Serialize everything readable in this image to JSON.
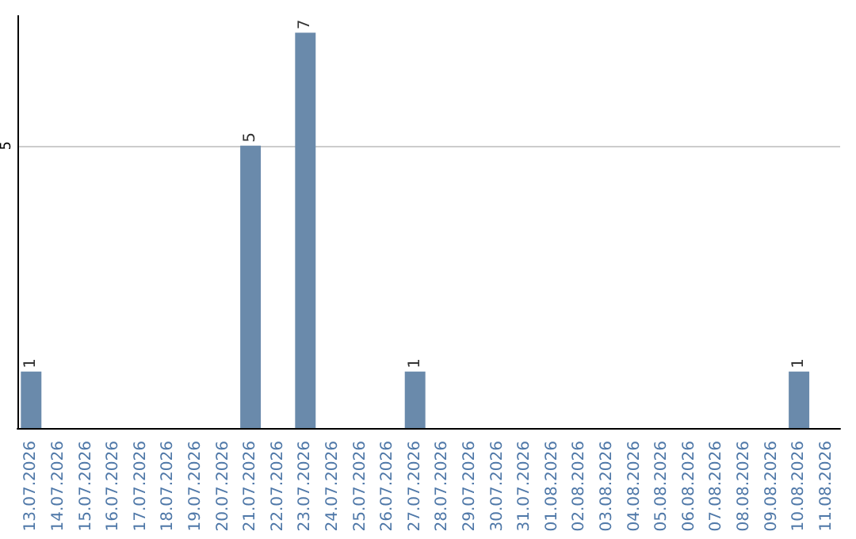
{
  "chart_data": {
    "type": "bar",
    "categories": [
      "13.07.2026",
      "14.07.2026",
      "15.07.2026",
      "16.07.2026",
      "17.07.2026",
      "18.07.2026",
      "19.07.2026",
      "20.07.2026",
      "21.07.2026",
      "22.07.2026",
      "23.07.2026",
      "24.07.2026",
      "25.07.2026",
      "26.07.2026",
      "27.07.2026",
      "28.07.2026",
      "29.07.2026",
      "30.07.2026",
      "31.07.2026",
      "01.08.2026",
      "02.08.2026",
      "03.08.2026",
      "04.08.2026",
      "05.08.2026",
      "06.08.2026",
      "07.08.2026",
      "08.08.2026",
      "09.08.2026",
      "10.08.2026",
      "11.08.2026"
    ],
    "values": [
      1,
      0,
      0,
      0,
      0,
      0,
      0,
      0,
      5,
      0,
      7,
      0,
      0,
      0,
      1,
      0,
      0,
      0,
      0,
      0,
      0,
      0,
      0,
      0,
      0,
      0,
      0,
      0,
      1,
      0
    ],
    "value_labels": [
      "1",
      null,
      null,
      null,
      null,
      null,
      null,
      null,
      "5",
      null,
      "7",
      null,
      null,
      null,
      "1",
      null,
      null,
      null,
      null,
      null,
      null,
      null,
      null,
      null,
      null,
      null,
      null,
      null,
      "1",
      null
    ],
    "color": "#6a8aab",
    "ylim": [
      0,
      7.3
    ],
    "yticks": [
      5
    ],
    "grid": "y"
  }
}
